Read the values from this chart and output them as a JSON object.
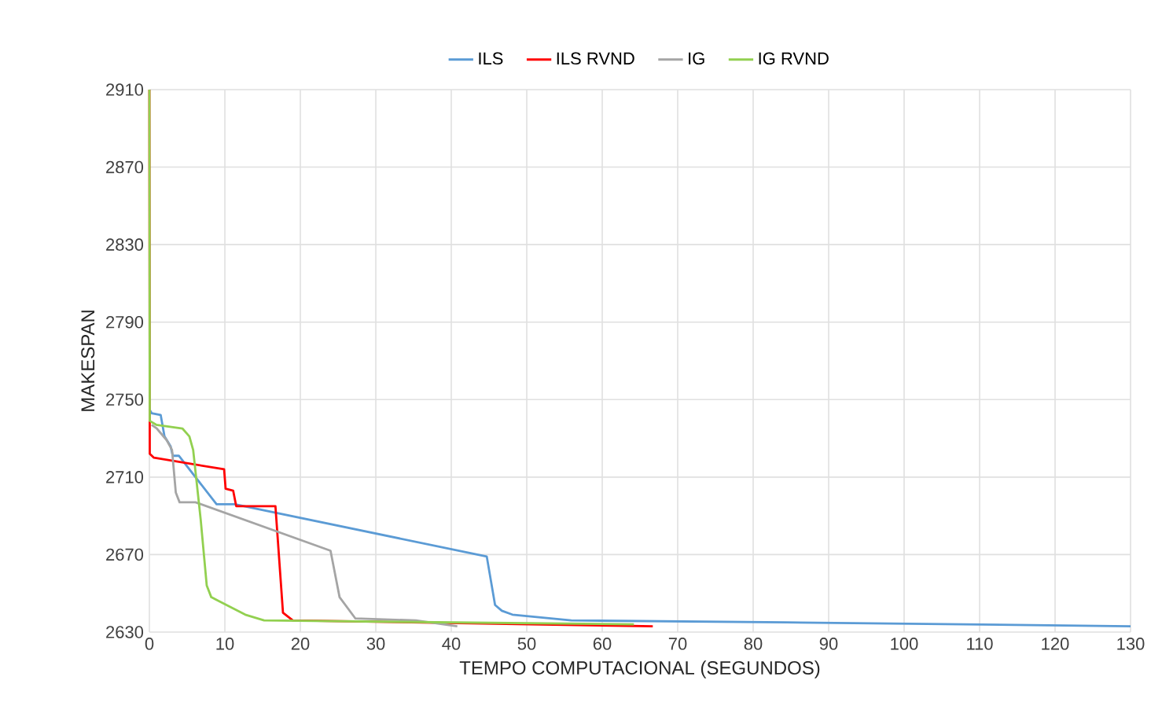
{
  "chart_data": {
    "type": "line",
    "xlabel": "TEMPO COMPUTACIONAL (SEGUNDOS)",
    "ylabel": "MAKESPAN",
    "xlim": [
      0,
      130
    ],
    "ylim": [
      2630,
      2910
    ],
    "xticks": [
      0,
      10,
      20,
      30,
      40,
      50,
      60,
      70,
      80,
      90,
      100,
      110,
      120,
      130
    ],
    "yticks": [
      2630,
      2670,
      2710,
      2750,
      2790,
      2830,
      2870,
      2910
    ],
    "grid": true,
    "legend": "top",
    "marker": "none",
    "line_style": "solid",
    "series": [
      {
        "name": "ILS",
        "color": "#5b9bd5",
        "x": [
          0,
          0.3,
          1.5,
          2,
          2.8,
          3.1,
          3.9,
          8.9,
          11.3,
          44.7,
          45.8,
          46.7,
          48.1,
          55.9,
          84.4,
          130
        ],
        "values": [
          2745,
          2743,
          2742,
          2731,
          2726,
          2721,
          2721,
          2696,
          2696,
          2669,
          2644,
          2641,
          2639,
          2636,
          2635,
          2633
        ]
      },
      {
        "name": "ILS RVND",
        "color": "#ff0000",
        "x": [
          0,
          0.05,
          0.6,
          9.9,
          10.1,
          11.1,
          11.5,
          16.7,
          17.7,
          19,
          66.7
        ],
        "values": [
          2910,
          2722,
          2720,
          2714,
          2704,
          2703,
          2695,
          2695,
          2640,
          2636,
          2633
        ]
      },
      {
        "name": "IG",
        "color": "#a5a5a5",
        "x": [
          0.3,
          1,
          2.3,
          3,
          3.5,
          4,
          6.1,
          24,
          25.2,
          27.3,
          35.3,
          40.8
        ],
        "values": [
          2737,
          2735,
          2729,
          2724,
          2702,
          2697,
          2697,
          2672,
          2648,
          2637,
          2636,
          2633
        ]
      },
      {
        "name": "IG RVND",
        "color": "#92d050",
        "x": [
          0,
          0.05,
          0.9,
          4.4,
          5.3,
          5.8,
          6.8,
          7.6,
          8.2,
          12.7,
          15.2,
          64.2
        ],
        "values": [
          2910,
          2739,
          2737,
          2735,
          2731,
          2724,
          2688,
          2654,
          2648,
          2639,
          2636,
          2634
        ]
      }
    ]
  }
}
